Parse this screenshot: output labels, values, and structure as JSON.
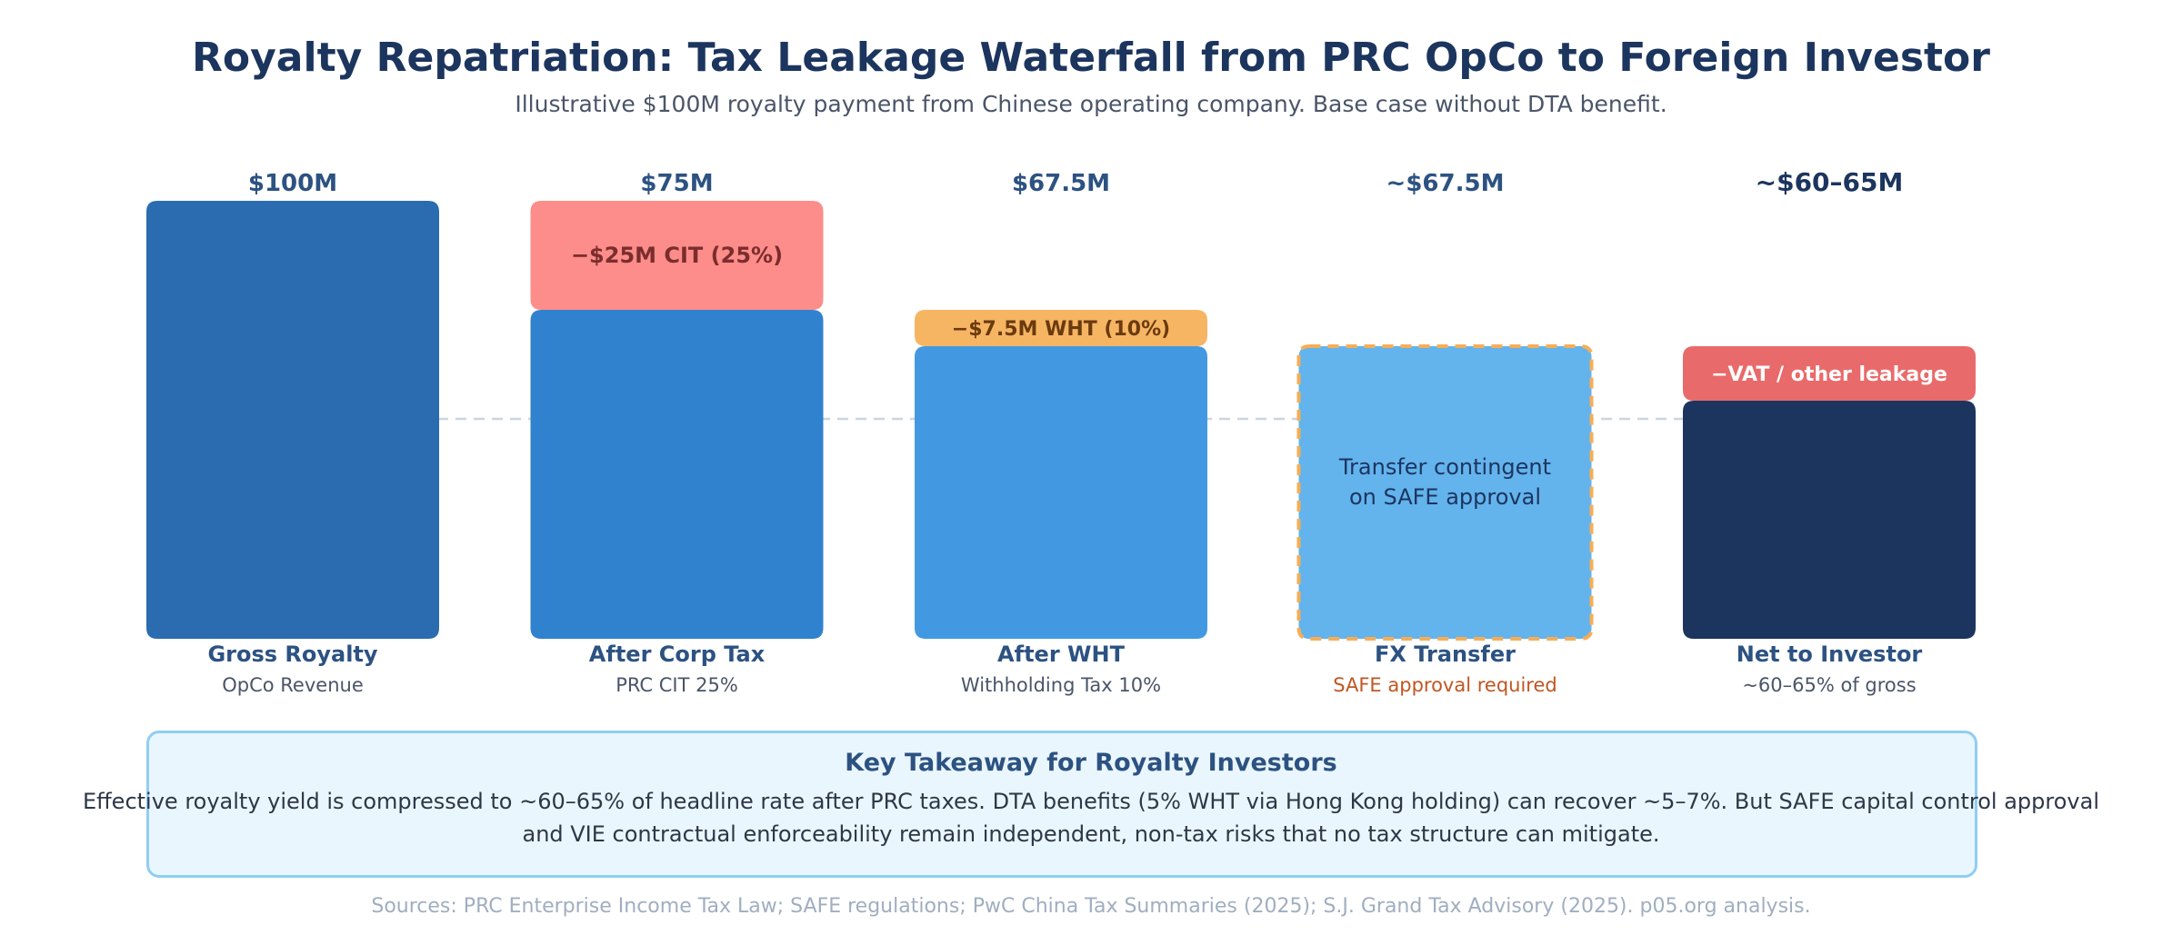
{
  "title": "Royalty Repatriation: Tax Leakage Waterfall from PRC OpCo to Foreign Investor",
  "subtitle": "Illustrative $100M royalty payment from Chinese operating company. Base case without DTA benefit.",
  "chart_data": {
    "type": "bar",
    "subtype": "waterfall",
    "title": "Royalty Repatriation: Tax Leakage Waterfall from PRC OpCo to Foreign Investor",
    "xlabel": "",
    "ylabel": "",
    "unit": "$M",
    "ylim": [
      0,
      100
    ],
    "grid": false,
    "reference_line": {
      "value": 62.5,
      "style": "dashed",
      "color": "#cbd5e0"
    },
    "categories": [
      "Gross Royalty",
      "After Corp Tax",
      "After WHT",
      "FX Transfer",
      "Net to Investor"
    ],
    "subtitles": [
      "OpCo Revenue",
      "PRC CIT 25%",
      "Withholding Tax 10%",
      "SAFE approval required",
      "~60–65% of gross"
    ],
    "values": [
      100,
      75,
      67.5,
      67.5,
      62.5
    ],
    "value_labels": [
      "$100M",
      "$75M",
      "$67.5M",
      "~$67.5M",
      "~$60–65M"
    ],
    "deductions": [
      {
        "category": "After Corp Tax",
        "value": 25,
        "label": "−$25M CIT (25%)",
        "color": "#fc8d8a",
        "text_color": "#7b2d2d"
      },
      {
        "category": "After WHT",
        "value": 7.5,
        "label": "−$7.5M WHT (10%)",
        "color": "#f6b563",
        "text_color": "#6b3a0f"
      },
      {
        "category": "Net to Investor",
        "value": 5,
        "label": "−VAT / other leakage",
        "color": "#e96a6a",
        "text_color": "#ffffff"
      }
    ],
    "bar_colors": [
      "#2b6cb0",
      "#3182ce",
      "#4299e1",
      "#63b3ed",
      "#1c355e"
    ],
    "annotations": [
      {
        "category": "FX Transfer",
        "text": [
          "Transfer contingent",
          "on SAFE approval"
        ],
        "border": "dashed",
        "border_color": "#f6ad55"
      }
    ],
    "label_colors": {
      "category": "#2c5282",
      "subtitle": "#4a5568",
      "subtitle_warning": "#c05621",
      "value": "#2c5282",
      "value_final": "#1c355e"
    }
  },
  "takeaway": {
    "title": "Key Takeaway for Royalty Investors",
    "line1": "Effective royalty yield is compressed to ~60–65% of headline rate after PRC taxes. DTA benefits (5% WHT via Hong Kong holding) can recover ~5–7%. But SAFE capital control approval",
    "line2": "and VIE contractual enforceability remain independent, non-tax risks that no tax structure can mitigate."
  },
  "sources": "Sources: PRC Enterprise Income Tax Law; SAFE regulations; PwC China Tax Summaries (2025); S.J. Grand Tax Advisory (2025). p05.org analysis."
}
